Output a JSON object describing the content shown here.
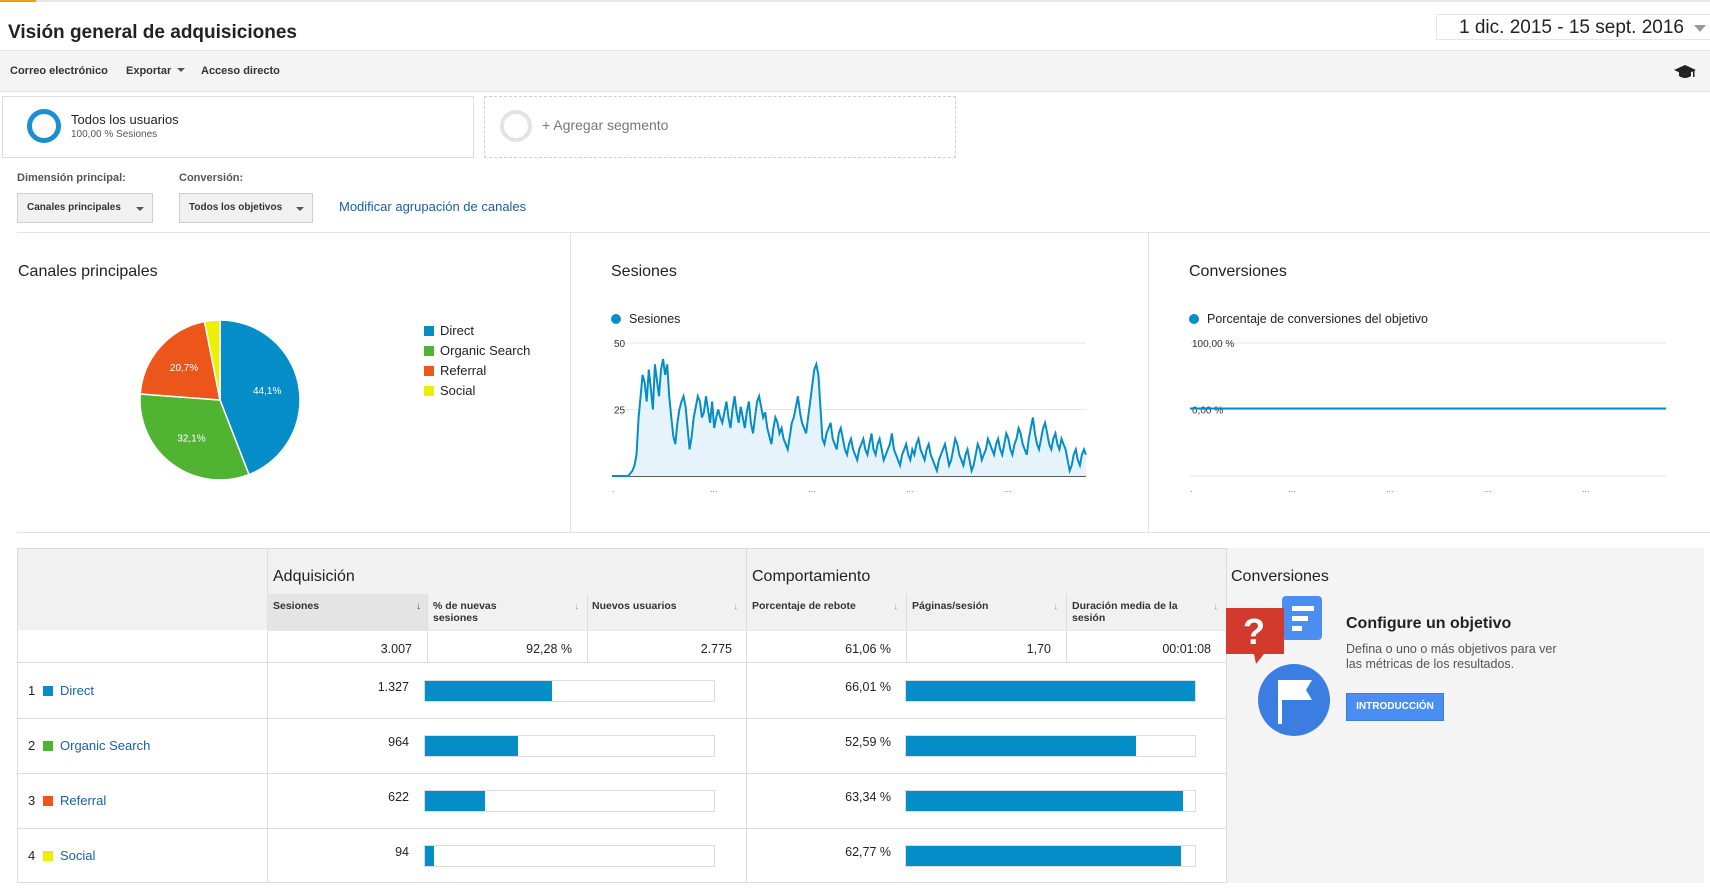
{
  "header": {
    "title": "Visión general de adquisiciones",
    "date_range": "1 dic. 2015 - 15 sept. 2016"
  },
  "toolbar": {
    "email_label": "Correo electrónico",
    "export_label": "Exportar",
    "shortcut_label": "Acceso directo",
    "help_icon": "graduation-cap-icon"
  },
  "segments": {
    "active_name": "Todos los usuarios",
    "active_sub": "100,00 % Sesiones",
    "add_label": "+ Agregar segmento"
  },
  "controls": {
    "dimension_label": "Dimensión principal:",
    "dimension_value": "Canales principales",
    "conversion_label": "Conversión:",
    "conversion_value": "Todos los objetivos",
    "modify_link": "Modificar agrupación de canales"
  },
  "panels": {
    "channels_title": "Canales principales",
    "sessions_title": "Sesiones",
    "conversions_title": "Conversiones"
  },
  "chart_data": [
    {
      "type": "pie",
      "title": "Canales principales",
      "categories": [
        "Direct",
        "Organic Search",
        "Referral",
        "Social"
      ],
      "values": [
        44.1,
        32.1,
        20.7,
        3.1
      ],
      "slice_labels": [
        "44,1%",
        "32,1%",
        "20,7%",
        ""
      ],
      "colors": [
        "#058dc7",
        "#50b432",
        "#ed561b",
        "#edef00"
      ],
      "legend_position": "right"
    },
    {
      "type": "area",
      "title": "Sesiones",
      "series": [
        {
          "name": "Sesiones",
          "values": [
            0,
            0,
            0,
            0,
            0,
            0,
            0,
            0,
            0,
            1,
            2,
            4,
            8,
            22,
            30,
            38,
            35,
            28,
            40,
            33,
            25,
            42,
            36,
            30,
            40,
            44,
            38,
            42,
            30,
            22,
            15,
            12,
            20,
            25,
            28,
            30,
            26,
            18,
            10,
            15,
            22,
            26,
            30,
            28,
            22,
            24,
            30,
            25,
            20,
            28,
            18,
            22,
            25,
            22,
            20,
            24,
            28,
            22,
            18,
            25,
            30,
            24,
            20,
            26,
            22,
            18,
            24,
            28,
            20,
            16,
            22,
            28,
            30,
            26,
            22,
            24,
            18,
            15,
            12,
            18,
            22,
            20,
            16,
            18,
            14,
            12,
            10,
            15,
            20,
            22,
            26,
            30,
            24,
            20,
            18,
            16,
            22,
            28,
            34,
            40,
            42,
            38,
            26,
            14,
            12,
            16,
            18,
            20,
            14,
            12,
            10,
            16,
            18,
            14,
            10,
            8,
            12,
            14,
            10,
            8,
            6,
            10,
            12,
            14,
            10,
            8,
            12,
            16,
            10,
            8,
            12,
            14,
            10,
            6,
            8,
            10,
            12,
            16,
            10,
            8,
            6,
            4,
            8,
            10,
            12,
            8,
            6,
            10,
            8,
            12,
            14,
            10,
            8,
            6,
            10,
            12,
            8,
            6,
            4,
            2,
            6,
            8,
            10,
            12,
            8,
            4,
            6,
            10,
            14,
            12,
            8,
            6,
            4,
            8,
            10,
            6,
            2,
            4,
            8,
            12,
            10,
            6,
            8,
            10,
            14,
            12,
            10,
            8,
            12,
            14,
            10,
            8,
            12,
            16,
            14,
            10,
            8,
            12,
            14,
            18,
            16,
            12,
            10,
            8,
            14,
            18,
            22,
            16,
            12,
            10,
            14,
            18,
            20,
            16,
            12,
            10,
            14,
            16,
            12,
            10,
            14,
            12,
            10,
            6,
            2,
            4,
            8,
            10,
            6,
            4,
            8,
            10,
            8
          ]
        }
      ],
      "y_ticks": [
        "50",
        "25"
      ],
      "ylim": [
        0,
        50
      ]
    },
    {
      "type": "line",
      "title": "Conversiones",
      "series": [
        {
          "name": "Porcentaje de conversiones del objetivo",
          "values": [
            0,
            0
          ]
        }
      ],
      "y_ticks": [
        "100,00 %",
        "0,00 %"
      ]
    }
  ],
  "table": {
    "acquisition_label": "Adquisición",
    "behavior_label": "Comportamiento",
    "conversions_label": "Conversiones",
    "columns": {
      "sessions": "Sesiones",
      "pct_new": "% de nuevas sesiones",
      "new_users": "Nuevos usuarios",
      "bounce": "Porcentaje de rebote",
      "pages": "Páginas/sesión",
      "duration": "Duración media de la sesión"
    },
    "totals": {
      "sessions": "3.007",
      "pct_new": "92,28 %",
      "new_users": "2.775",
      "bounce": "61,06 %",
      "pages": "1,70",
      "duration": "00:01:08"
    },
    "rows": [
      {
        "rank": "1",
        "name": "Direct",
        "color": "#058dc7",
        "sessions": "1.327",
        "sessions_frac": 0.441,
        "bounce": "66,01 %",
        "bounce_frac": 1.0
      },
      {
        "rank": "2",
        "name": "Organic Search",
        "color": "#50b432",
        "sessions": "964",
        "sessions_frac": 0.321,
        "bounce": "52,59 %",
        "bounce_frac": 0.797
      },
      {
        "rank": "3",
        "name": "Referral",
        "color": "#ed561b",
        "sessions": "622",
        "sessions_frac": 0.207,
        "bounce": "63,34 %",
        "bounce_frac": 0.96
      },
      {
        "rank": "4",
        "name": "Social",
        "color": "#edef00",
        "sessions": "94",
        "sessions_frac": 0.031,
        "bounce": "62,77 %",
        "bounce_frac": 0.951
      }
    ]
  },
  "goal": {
    "title": "Configure un objetivo",
    "description": "Defina o uno o más objetivos para ver las métricas de los resultados.",
    "button": "INTRODUCCIÓN",
    "illustration_icon": "goal-flag-icon"
  }
}
